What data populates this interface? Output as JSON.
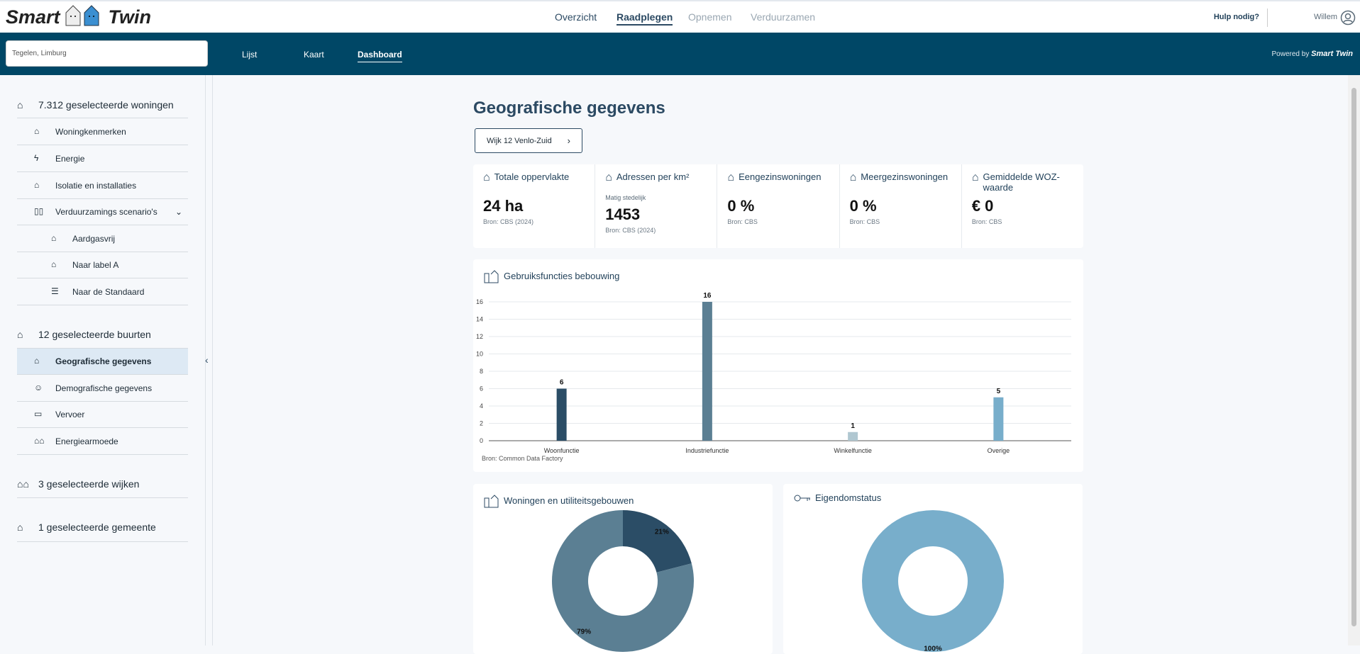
{
  "app": {
    "logo_left": "Smart",
    "logo_right": "Twin"
  },
  "topnav": {
    "items": [
      "Overzicht",
      "Raadplegen",
      "Opnemen",
      "Verduurzamen"
    ],
    "active": "Raadplegen"
  },
  "header": {
    "help": "Hulp nodig?",
    "user": "Willem"
  },
  "navbar": {
    "search_value": "Tegelen, Limburg",
    "tabs": [
      "Lijst",
      "Kaart",
      "Dashboard"
    ],
    "active_tab": "Dashboard",
    "powered_by": "Powered by",
    "powered_brand": "Smart Twin"
  },
  "sidebar": {
    "woningen": {
      "label": "7.312 geselecteerde woningen",
      "items": [
        "Woningkenmerken",
        "Energie",
        "Isolatie en installaties",
        "Verduurzamings scenario's"
      ],
      "subitems": [
        "Aardgasvrij",
        "Naar label A",
        "Naar de Standaard"
      ]
    },
    "buurten": {
      "label": "12 geselecteerde buurten",
      "items": [
        "Geografische gegevens",
        "Demografische gegevens",
        "Vervoer",
        "Energiearmoede"
      ],
      "selected": "Geografische gegevens"
    },
    "wijken": {
      "label": "3 geselecteerde wijken"
    },
    "gemeente": {
      "label": "1 geselecteerde gemeente"
    }
  },
  "main": {
    "title": "Geografische gegevens",
    "wijk_button": "Wijk 12 Venlo-Zuid",
    "stats": [
      {
        "title": "Totale oppervlakte",
        "sub": "",
        "value": "24 ha",
        "source": "Bron: CBS (2024)",
        "icon": "area-icon"
      },
      {
        "title": "Adressen per km²",
        "sub": "Matig stedelijk",
        "value": "1453",
        "source": "Bron: CBS (2024)",
        "icon": "buildings-icon"
      },
      {
        "title": "Eengezinswoningen",
        "sub": "",
        "value": "0 %",
        "source": "Bron: CBS",
        "icon": "house-icon"
      },
      {
        "title": "Meergezinswoningen",
        "sub": "",
        "value": "0 %",
        "source": "Bron: CBS",
        "icon": "apartment-icon"
      },
      {
        "title": "Gemiddelde WOZ-waarde",
        "sub": "",
        "value": "€ 0",
        "source": "Bron: CBS",
        "icon": "woz-icon"
      }
    ],
    "bar_title": "Gebruiksfuncties bebouwing",
    "bar_source": "Bron: Common Data Factory",
    "donut1_title": "Woningen en utiliteitsgebouwen",
    "donut2_title": "Eigendomstatus"
  },
  "chart_data": [
    {
      "type": "bar",
      "title": "Gebruiksfuncties bebouwing",
      "categories": [
        "Woonfunctie",
        "Industriefunctie",
        "Winkelfunctie",
        "Overige"
      ],
      "values": [
        6,
        16,
        1,
        5
      ],
      "colors": [
        "#2b4d66",
        "#5b7f93",
        "#b0c7d1",
        "#78aecb"
      ],
      "ylim": [
        0,
        16
      ],
      "yticks": [
        0,
        2,
        4,
        6,
        8,
        10,
        12,
        14,
        16
      ],
      "grid": true
    },
    {
      "type": "pie",
      "title": "Woningen en utiliteitsgebouwen",
      "values": [
        21,
        79
      ],
      "labels": [
        "21%",
        "79%"
      ],
      "colors": [
        "#2b4d66",
        "#5b7f93"
      ],
      "donut": true
    },
    {
      "type": "pie",
      "title": "Eigendomstatus",
      "values": [
        100
      ],
      "labels": [
        "100%"
      ],
      "colors": [
        "#78aecb"
      ],
      "donut": true
    }
  ]
}
